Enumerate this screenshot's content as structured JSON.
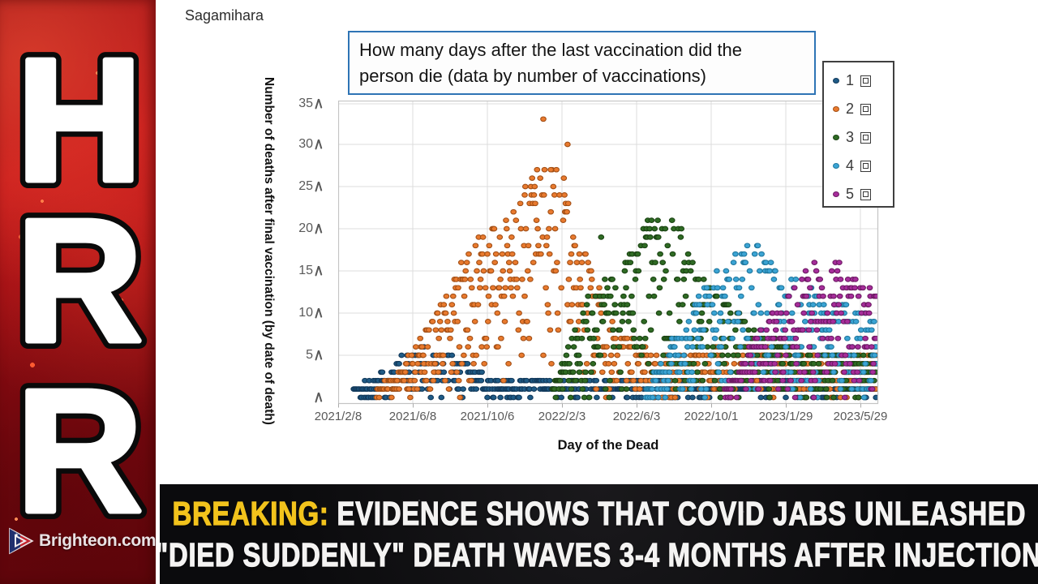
{
  "branding": {
    "letters": [
      "H",
      "R",
      "R"
    ],
    "logo_text": "Brighteon.com",
    "band_color": "#b01117"
  },
  "page": {
    "region_label": "Sagamihara"
  },
  "banner": {
    "prefix": "BREAKING:",
    "line1_rest": " EVIDENCE SHOWS THAT COVID JABS UNLEASHED",
    "line2": "\"DIED SUDDENLY\" DEATH WAVES 3-4 MONTHS AFTER INJECTION",
    "prefix_color": "#f2c31c",
    "text_color": "#f4f3f2",
    "bg_color": "#0b0b0d"
  },
  "chart_data": {
    "type": "scatter",
    "title": "How many days after the last vaccination did the person die (data by number of vaccinations)",
    "title_lines": [
      "How many days after the last vaccination did the",
      "person die (data by number of vaccinations)"
    ],
    "title_border_color": "#2e74b5",
    "xlabel": "Day of the Dead",
    "ylabel": "Number of deaths after final vaccination (by date of death)",
    "y_unit": "人",
    "ylim": [
      0,
      36
    ],
    "grid": true,
    "legend_position": "top-right",
    "y_ticks": [
      {
        "label": "35人",
        "num": "35",
        "value": 35
      },
      {
        "label": "30人",
        "num": "30",
        "value": 30
      },
      {
        "label": "25人",
        "num": "25",
        "value": 25
      },
      {
        "label": "20人",
        "num": "20",
        "value": 20
      },
      {
        "label": "15人",
        "num": "15",
        "value": 15
      },
      {
        "label": "10人",
        "num": "10",
        "value": 10
      },
      {
        "label": "5人",
        "num": "5",
        "value": 5
      },
      {
        "label": "人",
        "num": "",
        "value": 0
      }
    ],
    "x_ticks": [
      {
        "label": "2021/2/8",
        "day": 0
      },
      {
        "label": "2021/6/8",
        "day": 120
      },
      {
        "label": "2021/10/6",
        "day": 240
      },
      {
        "label": "2022/2/3",
        "day": 360
      },
      {
        "label": "2022/6/3",
        "day": 480
      },
      {
        "label": "2022/10/1",
        "day": 600
      },
      {
        "label": "2023/1/29",
        "day": 720
      },
      {
        "label": "2023/5/29",
        "day": 840
      }
    ],
    "x_range_days": [
      0,
      866
    ],
    "x_tick_interval_days": 120,
    "series": [
      {
        "name": "1回",
        "num": "1",
        "fill": "#1f5b86",
        "edge": "#123a5c",
        "seed": 11,
        "skip": 0.28,
        "envelope": [
          [
            25,
            1
          ],
          [
            55,
            2
          ],
          [
            80,
            3
          ],
          [
            105,
            5
          ],
          [
            140,
            6
          ],
          [
            180,
            5
          ],
          [
            215,
            4
          ],
          [
            250,
            2
          ],
          [
            290,
            2
          ],
          [
            866,
            1.6
          ]
        ],
        "outliers": []
      },
      {
        "name": "2回",
        "num": "2",
        "fill": "#e97a2e",
        "edge": "#a34f15",
        "seed": 22,
        "skip": 0.08,
        "envelope": [
          [
            62,
            1
          ],
          [
            95,
            3
          ],
          [
            125,
            6
          ],
          [
            155,
            10
          ],
          [
            185,
            14
          ],
          [
            215,
            18
          ],
          [
            245,
            20
          ],
          [
            275,
            22
          ],
          [
            305,
            25
          ],
          [
            328,
            29
          ],
          [
            348,
            27
          ],
          [
            368,
            25
          ],
          [
            388,
            19
          ],
          [
            410,
            14
          ],
          [
            430,
            11
          ],
          [
            455,
            8
          ],
          [
            480,
            6
          ],
          [
            540,
            5
          ],
          [
            650,
            6
          ],
          [
            866,
            5
          ]
        ],
        "outliers": [
          [
            330,
            33
          ],
          [
            369,
            30
          ],
          [
            342,
            27
          ],
          [
            300,
            24
          ]
        ]
      },
      {
        "name": "3回",
        "num": "3",
        "fill": "#2f6b24",
        "edge": "#1b4413",
        "seed": 33,
        "skip": 0.08,
        "envelope": [
          [
            345,
            1
          ],
          [
            365,
            5
          ],
          [
            385,
            9
          ],
          [
            405,
            12
          ],
          [
            430,
            14
          ],
          [
            455,
            16
          ],
          [
            480,
            18
          ],
          [
            505,
            22
          ],
          [
            525,
            20
          ],
          [
            545,
            21
          ],
          [
            565,
            17
          ],
          [
            590,
            14
          ],
          [
            615,
            12
          ],
          [
            640,
            10
          ],
          [
            670,
            8
          ],
          [
            700,
            7
          ],
          [
            740,
            6
          ],
          [
            790,
            5
          ],
          [
            866,
            5
          ]
        ],
        "outliers": [
          [
            423,
            19
          ]
        ]
      },
      {
        "name": "4回",
        "num": "4",
        "fill": "#3ba4d4",
        "edge": "#20789f",
        "seed": 44,
        "skip": 0.1,
        "envelope": [
          [
            495,
            1
          ],
          [
            520,
            4
          ],
          [
            545,
            8
          ],
          [
            575,
            11
          ],
          [
            600,
            14
          ],
          [
            625,
            16
          ],
          [
            650,
            17
          ],
          [
            668,
            19
          ],
          [
            685,
            17
          ],
          [
            705,
            15
          ],
          [
            730,
            14
          ],
          [
            755,
            13
          ],
          [
            780,
            12
          ],
          [
            810,
            11
          ],
          [
            840,
            10
          ],
          [
            866,
            9
          ]
        ],
        "outliers": []
      },
      {
        "name": "5回",
        "num": "5",
        "fill": "#a62d9b",
        "edge": "#6e1a64",
        "seed": 55,
        "skip": 0.1,
        "envelope": [
          [
            622,
            1
          ],
          [
            650,
            4
          ],
          [
            678,
            8
          ],
          [
            700,
            10
          ],
          [
            722,
            12
          ],
          [
            745,
            14
          ],
          [
            768,
            16
          ],
          [
            788,
            17
          ],
          [
            805,
            16
          ],
          [
            822,
            15
          ],
          [
            845,
            13
          ],
          [
            866,
            12
          ]
        ],
        "outliers": []
      }
    ]
  }
}
